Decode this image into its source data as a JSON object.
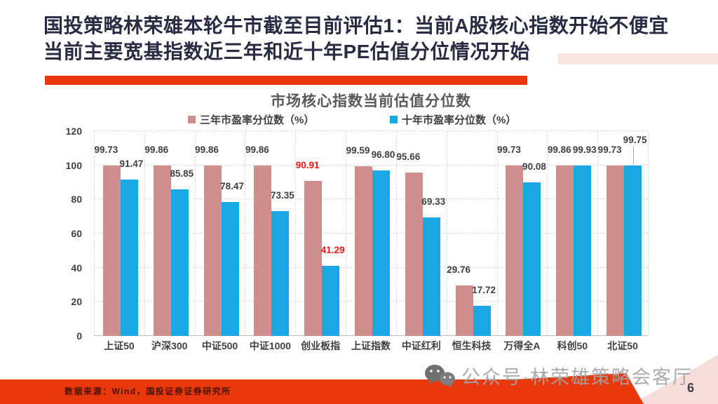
{
  "slide": {
    "title_line1": "国投策略林荣雄本轮牛市截至目前评估1：当前A股核心指数开始不便宜",
    "title_line2": "当前主要宽基指数近三年和近十年PE估值分位情况开始",
    "source_note": "数据来源：Wind，国投证券证券研究所",
    "watermark_text": "公众号·林荣雄策略会客厅",
    "page_number": "6",
    "accent_red": "#e8380c",
    "pale_pink": "#f7dcd9",
    "title_ink": "#2a2a42"
  },
  "chart_data": {
    "type": "bar",
    "title": "市场核心指数当前估值分位数",
    "categories": [
      "上证50",
      "沪深300",
      "中证500",
      "中证1000",
      "创业板指",
      "上证指数",
      "中证红利",
      "恒生科技",
      "万得全A",
      "科创50",
      "北证50"
    ],
    "series": [
      {
        "name": "三年市盈率分位数（%）",
        "color": "#cd8e8c",
        "values": [
          99.73,
          99.86,
          99.86,
          99.86,
          90.91,
          99.59,
          95.66,
          29.76,
          99.73,
          99.86,
          99.73
        ]
      },
      {
        "name": "十年市盈率分位数（%）",
        "color": "#1ba7e5",
        "values": [
          91.47,
          85.85,
          78.47,
          73.35,
          41.29,
          96.8,
          69.33,
          17.72,
          90.08,
          99.93,
          99.75
        ]
      }
    ],
    "ylim": [
      0,
      120
    ],
    "yticks": [
      0,
      20,
      40,
      60,
      80,
      100,
      120
    ],
    "grid": "dashed",
    "legend_position": "top",
    "label_color": "#3f3f3f",
    "highlight_indices": [
      4
    ],
    "highlight_color": "#fe1414",
    "label_offsets": [
      {
        "series": 1,
        "index": 10,
        "dx": 0,
        "dy": 14,
        "leader": true
      }
    ]
  }
}
